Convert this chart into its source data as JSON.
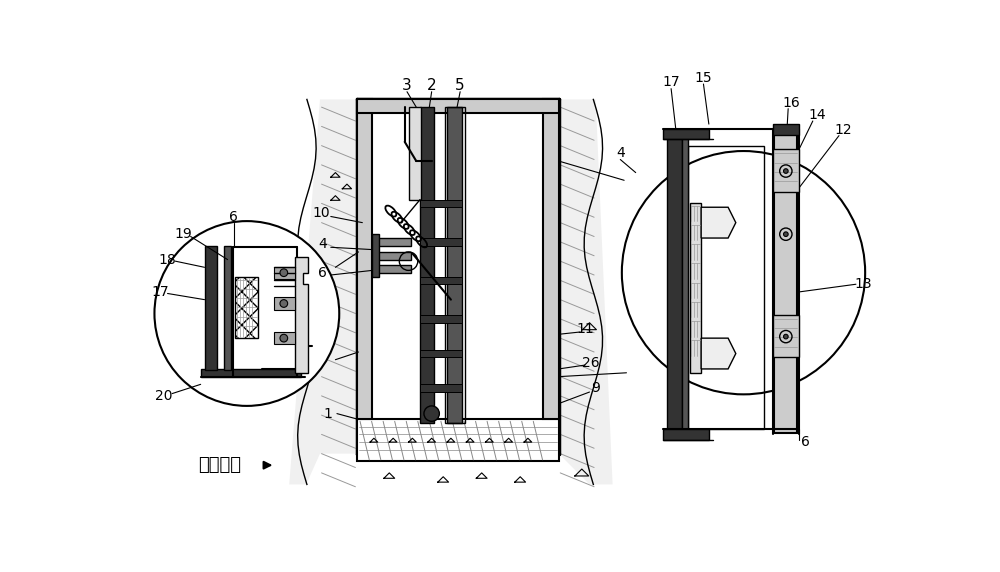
{
  "bg_color": "#ffffff",
  "fig_width": 10.0,
  "fig_height": 5.72,
  "black": "#000000",
  "gray_hatch": "#aaaaaa",
  "gray_fill": "#cccccc",
  "dark_fill": "#444444",
  "light_gray": "#e0e0e0"
}
